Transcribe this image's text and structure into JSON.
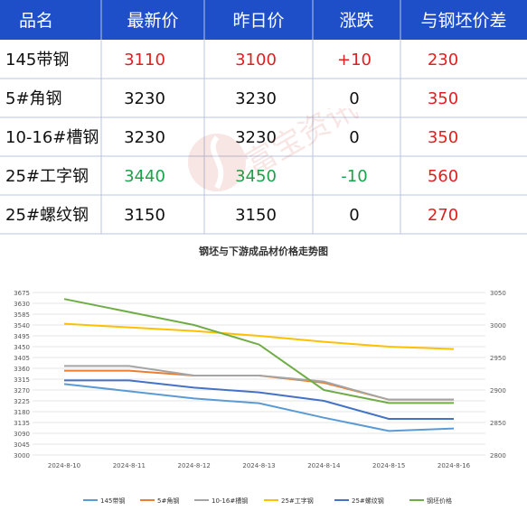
{
  "table": {
    "headers": [
      "品名",
      "最新价",
      "昨日价",
      "涨跌",
      "与钢坯价差"
    ],
    "rows": [
      {
        "name": "145带钢",
        "latest": "3110",
        "prev": "3100",
        "change": "+10",
        "spread": "230",
        "latest_color": "#e02020",
        "prev_color": "#e02020",
        "change_color": "#e02020"
      },
      {
        "name": "5#角钢",
        "latest": "3230",
        "prev": "3230",
        "change": "0",
        "spread": "350",
        "latest_color": "#111111",
        "prev_color": "#111111",
        "change_color": "#111111"
      },
      {
        "name": "10-16#槽钢",
        "latest": "3230",
        "prev": "3230",
        "change": "0",
        "spread": "350",
        "latest_color": "#111111",
        "prev_color": "#111111",
        "change_color": "#111111"
      },
      {
        "name": "25#工字钢",
        "latest": "3440",
        "prev": "3450",
        "change": "-10",
        "spread": "560",
        "latest_color": "#1aa34a",
        "prev_color": "#1aa34a",
        "change_color": "#1aa34a"
      },
      {
        "name": "25#螺纹钢",
        "latest": "3150",
        "prev": "3150",
        "change": "0",
        "spread": "270",
        "latest_color": "#111111",
        "prev_color": "#111111",
        "change_color": "#111111"
      }
    ],
    "header_bg": "#1e4fc9",
    "spread_color": "#e02020"
  },
  "watermark_text": "富宝资讯",
  "chart_data": {
    "type": "line",
    "title": "钢坯与下游成品材价格走势图",
    "categories": [
      "2024-8-10",
      "2024-8-11",
      "2024-8-12",
      "2024-8-13",
      "2024-8-14",
      "2024-8-15",
      "2024-8-16"
    ],
    "y_left": {
      "min": 3000,
      "max": 3675,
      "ticks": [
        3000,
        3045,
        3090,
        3135,
        3180,
        3225,
        3270,
        3315,
        3360,
        3405,
        3450,
        3495,
        3540,
        3585,
        3630,
        3675
      ]
    },
    "y_right": {
      "min": 2800,
      "max": 3050,
      "ticks": [
        2800,
        2850,
        2900,
        2950,
        3000,
        3050
      ]
    },
    "series": [
      {
        "name": "145带钢",
        "color": "#5b9bd5",
        "axis": "left",
        "values": [
          3295,
          3265,
          3235,
          3215,
          3155,
          3100,
          3110
        ]
      },
      {
        "name": "5#角钢",
        "color": "#ed7d31",
        "axis": "left",
        "values": [
          3350,
          3350,
          3330,
          3330,
          3300,
          3230,
          3230
        ]
      },
      {
        "name": "10-16#槽钢",
        "color": "#a5a5a5",
        "axis": "left",
        "values": [
          3370,
          3370,
          3330,
          3330,
          3305,
          3230,
          3230
        ]
      },
      {
        "name": "25#工字钢",
        "color": "#ffc000",
        "axis": "left",
        "values": [
          3545,
          3530,
          3515,
          3495,
          3470,
          3450,
          3440
        ]
      },
      {
        "name": "25#螺纹钢",
        "color": "#4472c4",
        "axis": "left",
        "values": [
          3310,
          3310,
          3280,
          3260,
          3225,
          3150,
          3150
        ]
      },
      {
        "name": "钢坯价格",
        "color": "#70ad47",
        "axis": "right",
        "values": [
          3040,
          3020,
          3000,
          2970,
          2900,
          2880,
          2880
        ]
      }
    ],
    "legend_position": "bottom",
    "grid": true
  }
}
